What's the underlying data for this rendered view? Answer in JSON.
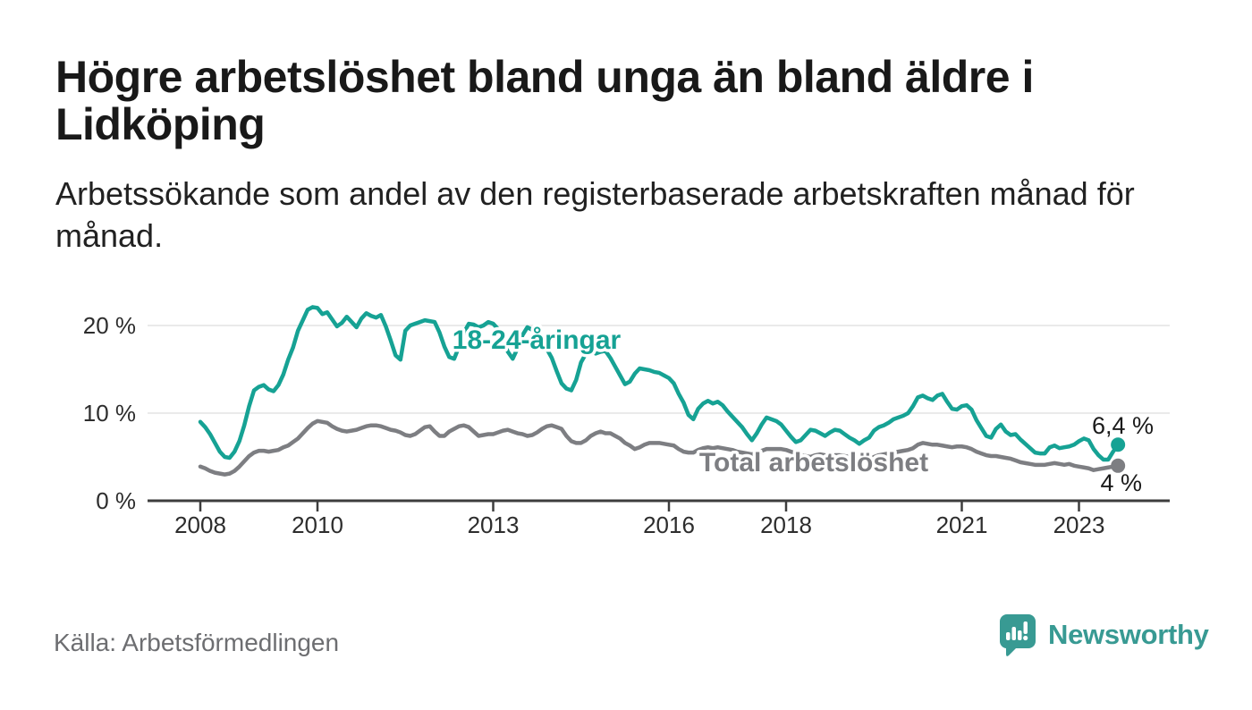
{
  "header": {
    "title_lines": [
      "Högre arbetslöshet bland unga än bland äldre i",
      "Lidköping"
    ],
    "subtitle_lines": [
      "Arbetssökande som andel av den registerbaserade arbetskraften månad för",
      "månad."
    ]
  },
  "footer": {
    "source": "Källa: Arbetsförmedlingen",
    "brand": "Newsworthy"
  },
  "colors": {
    "youth_line": "#16a294",
    "total_line": "#7d7e82",
    "brand_teal": "#389a93",
    "axis": "#3d3d3d",
    "gridline": "#e3e3e3"
  },
  "chart_data": {
    "type": "line",
    "unit": "%",
    "x_start_year": 2008,
    "points_per_year": 12,
    "x_range": [
      2008,
      2023.75
    ],
    "ylim": [
      0,
      23
    ],
    "grid": "horizontal",
    "x_ticks": [
      {
        "year": 2008,
        "label": "2008"
      },
      {
        "year": 2010,
        "label": "2010"
      },
      {
        "year": 2013,
        "label": "2013"
      },
      {
        "year": 2016,
        "label": "2016"
      },
      {
        "year": 2018,
        "label": "2018"
      },
      {
        "year": 2021,
        "label": "2021"
      },
      {
        "year": 2023,
        "label": "2023"
      }
    ],
    "y_ticks": [
      {
        "value": 20,
        "label": "20 %",
        "gridline": true
      },
      {
        "value": 10,
        "label": "10 %",
        "gridline": true
      },
      {
        "value": 0,
        "label": "0 %",
        "gridline": false
      }
    ],
    "series": [
      {
        "name": "18-24-åringar",
        "color": "#16a294",
        "end_label": "6,4 %",
        "last_value": 6.4,
        "values": [
          9.0,
          8.4,
          7.6,
          6.6,
          5.6,
          5.0,
          4.9,
          5.6,
          6.8,
          8.6,
          10.8,
          12.6,
          13.0,
          13.2,
          12.7,
          12.5,
          13.2,
          14.4,
          16.1,
          17.5,
          19.4,
          20.6,
          21.8,
          22.1,
          22.0,
          21.3,
          21.5,
          20.7,
          19.9,
          20.3,
          21.0,
          20.4,
          19.8,
          20.8,
          21.4,
          21.1,
          20.9,
          21.2,
          19.9,
          18.3,
          16.6,
          16.1,
          19.4,
          20.0,
          20.2,
          20.4,
          20.6,
          20.5,
          20.4,
          19.2,
          17.6,
          16.4,
          16.2,
          17.6,
          19.2,
          20.2,
          20.1,
          19.8,
          20.0,
          20.4,
          20.2,
          19.6,
          18.4,
          17.0,
          16.2,
          17.4,
          18.9,
          19.8,
          19.5,
          18.9,
          18.4,
          17.3,
          16.3,
          14.8,
          13.4,
          12.8,
          12.6,
          13.8,
          15.8,
          16.8,
          17.1,
          16.8,
          17.0,
          17.1,
          16.3,
          15.3,
          14.3,
          13.3,
          13.6,
          14.5,
          15.1,
          15.0,
          14.9,
          14.7,
          14.6,
          14.3,
          14.0,
          13.4,
          12.2,
          11.2,
          9.8,
          9.3,
          10.5,
          11.1,
          11.4,
          11.1,
          11.3,
          10.9,
          10.2,
          9.6,
          9.0,
          8.4,
          7.6,
          6.9,
          7.7,
          8.7,
          9.5,
          9.3,
          9.1,
          8.7,
          8.0,
          7.3,
          6.7,
          6.9,
          7.5,
          8.1,
          8.0,
          7.7,
          7.4,
          7.8,
          8.1,
          8.0,
          7.6,
          7.2,
          6.9,
          6.5,
          6.9,
          7.2,
          8.0,
          8.4,
          8.6,
          8.9,
          9.3,
          9.5,
          9.7,
          10.0,
          10.8,
          11.8,
          12.0,
          11.7,
          11.5,
          12.0,
          12.2,
          11.3,
          10.5,
          10.4,
          10.8,
          10.9,
          10.4,
          9.2,
          8.3,
          7.4,
          7.2,
          8.2,
          8.7,
          7.9,
          7.5,
          7.6,
          7.0,
          6.5,
          6.0,
          5.5,
          5.4,
          5.4,
          6.1,
          6.3,
          6.0,
          6.1,
          6.2,
          6.4,
          6.8,
          7.1,
          6.9,
          5.9,
          5.2,
          4.7,
          4.7,
          5.6,
          6.4
        ]
      },
      {
        "name": "Total arbetslöshet",
        "color": "#7d7e82",
        "end_label": "4 %",
        "last_value": 4.0,
        "values": [
          3.9,
          3.7,
          3.4,
          3.2,
          3.1,
          3.0,
          3.1,
          3.4,
          3.9,
          4.5,
          5.1,
          5.5,
          5.7,
          5.7,
          5.6,
          5.7,
          5.8,
          6.1,
          6.3,
          6.7,
          7.1,
          7.7,
          8.3,
          8.8,
          9.1,
          9.0,
          8.9,
          8.5,
          8.2,
          8.0,
          7.9,
          8.0,
          8.1,
          8.3,
          8.5,
          8.6,
          8.6,
          8.5,
          8.3,
          8.1,
          8.0,
          7.8,
          7.5,
          7.4,
          7.6,
          8.0,
          8.4,
          8.5,
          7.9,
          7.4,
          7.4,
          7.9,
          8.2,
          8.5,
          8.6,
          8.4,
          7.9,
          7.4,
          7.5,
          7.6,
          7.6,
          7.8,
          8.0,
          8.1,
          7.9,
          7.7,
          7.6,
          7.4,
          7.5,
          7.8,
          8.2,
          8.5,
          8.6,
          8.4,
          8.2,
          7.4,
          6.8,
          6.6,
          6.6,
          6.9,
          7.4,
          7.7,
          7.9,
          7.7,
          7.7,
          7.4,
          7.1,
          6.6,
          6.3,
          5.9,
          6.1,
          6.4,
          6.6,
          6.6,
          6.6,
          6.5,
          6.4,
          6.3,
          5.9,
          5.6,
          5.5,
          5.5,
          5.8,
          6.0,
          6.1,
          6.0,
          6.1,
          6.0,
          5.9,
          5.8,
          5.6,
          5.5,
          5.4,
          5.3,
          5.5,
          5.7,
          5.9,
          5.9,
          5.9,
          5.9,
          5.8,
          5.6,
          5.4,
          5.2,
          5.1,
          5.0,
          5.2,
          5.3,
          5.2,
          5.1,
          5.2,
          5.2,
          5.1,
          5.0,
          4.9,
          4.8,
          4.7,
          4.8,
          5.0,
          5.2,
          5.3,
          5.4,
          5.5,
          5.6,
          5.7,
          5.8,
          6.0,
          6.4,
          6.6,
          6.5,
          6.4,
          6.4,
          6.3,
          6.2,
          6.1,
          6.2,
          6.2,
          6.1,
          5.9,
          5.6,
          5.4,
          5.2,
          5.1,
          5.1,
          5.0,
          4.9,
          4.8,
          4.6,
          4.4,
          4.3,
          4.2,
          4.1,
          4.1,
          4.1,
          4.2,
          4.3,
          4.2,
          4.1,
          4.2,
          4.0,
          3.9,
          3.8,
          3.7,
          3.5,
          3.6,
          3.7,
          3.8,
          3.9,
          4.0
        ]
      }
    ]
  }
}
